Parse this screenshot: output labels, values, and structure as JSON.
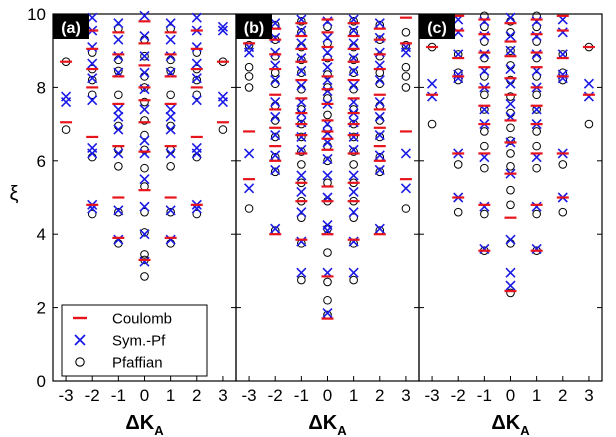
{
  "chart_data": {
    "type": "scatter",
    "ylabel": "ξ",
    "xlabel_main": "ΔK",
    "xlabel_sub": "A",
    "ylim": [
      0,
      10
    ],
    "yticks": [
      0,
      2,
      4,
      6,
      8,
      10
    ],
    "xticks": [
      -3,
      -2,
      -1,
      0,
      1,
      2,
      3
    ],
    "xlim": [
      -3.5,
      3.5
    ],
    "grid": false,
    "legend": {
      "panel": "a",
      "placement": "bottom-left",
      "entries": [
        {
          "label": "Coulomb",
          "marker": "dash",
          "color": "#e8141c"
        },
        {
          "label": "Sym.-Pf",
          "marker": "cross",
          "color": "#1a1ae6"
        },
        {
          "label": "Pfaffian",
          "marker": "circle",
          "color": "#000000"
        }
      ]
    },
    "panels": [
      {
        "label": "(a)",
        "coulomb": {
          "-3": [
            7.05,
            8.7
          ],
          "-2": [
            4.8,
            6.65,
            8.0,
            8.5,
            9.05,
            9.55
          ],
          "-1": [
            3.9,
            5.0,
            6.4,
            7.55,
            8.3,
            8.9,
            9.5
          ],
          "0": [
            3.3,
            5.2,
            6.25,
            7.05,
            7.65,
            8.0,
            8.6,
            9.2,
            9.8
          ],
          "1": [
            3.9,
            5.0,
            6.4,
            7.55,
            8.3,
            8.9,
            9.5
          ],
          "2": [
            4.8,
            6.65,
            8.0,
            8.5,
            9.05,
            9.55
          ],
          "3": [
            7.05,
            8.7
          ]
        },
        "sympf": {
          "-3": [
            7.6,
            7.75,
            9.55,
            9.65
          ],
          "-2": [
            4.7,
            4.8,
            6.2,
            6.35,
            7.65,
            8.25,
            8.65,
            9.1,
            9.55,
            9.9
          ],
          "-1": [
            3.85,
            4.65,
            6.2,
            6.85,
            7.2,
            7.4,
            8.4,
            8.85,
            9.3,
            9.75
          ],
          "0": [
            3.25,
            4.0,
            4.75,
            5.5,
            6.2,
            6.55,
            7.4,
            7.95,
            8.4,
            8.85,
            9.4,
            9.95
          ],
          "1": [
            3.85,
            4.65,
            6.2,
            6.85,
            7.2,
            7.4,
            8.4,
            8.85,
            9.3,
            9.75
          ],
          "2": [
            4.7,
            4.8,
            6.2,
            6.35,
            7.65,
            8.25,
            8.65,
            9.1,
            9.55,
            9.9
          ],
          "3": [
            7.6,
            7.75,
            9.55,
            9.65
          ]
        },
        "pfaffian": {
          "-3": [
            6.85,
            8.7
          ],
          "-2": [
            4.55,
            6.1,
            7.8,
            8.2,
            8.5,
            8.95
          ],
          "-1": [
            3.75,
            4.6,
            5.85,
            6.3,
            6.95,
            7.8,
            8.45,
            8.75,
            9.6
          ],
          "0": [
            2.85,
            3.3,
            3.45,
            4.05,
            4.6,
            5.3,
            5.8,
            6.3,
            6.7,
            7.1,
            7.6,
            8.0,
            8.3,
            8.85,
            9.3
          ],
          "1": [
            3.75,
            4.6,
            5.85,
            6.3,
            6.95,
            7.8,
            8.45,
            8.75,
            9.6
          ],
          "2": [
            4.55,
            6.1,
            7.8,
            8.2,
            8.5,
            8.95
          ],
          "3": [
            6.85,
            8.7
          ]
        }
      },
      {
        "label": "(b)",
        "coulomb": {
          "-3": [
            5.5,
            6.8,
            9.2,
            9.9
          ],
          "-2": [
            4.0,
            6.0,
            6.4,
            6.9,
            7.4,
            7.8,
            8.5,
            8.9,
            9.3,
            9.6
          ],
          "-1": [
            3.85,
            4.9,
            5.4,
            6.2,
            6.7,
            7.0,
            7.3,
            7.7,
            8.2,
            8.7,
            9.05,
            9.4,
            9.75
          ],
          "0": [
            1.7,
            2.85,
            4.0,
            4.9,
            5.3,
            6.3,
            6.6,
            6.8,
            7.1,
            7.55,
            7.95,
            8.3,
            8.75,
            9.1,
            9.5,
            9.85
          ],
          "1": [
            3.85,
            4.9,
            5.4,
            6.2,
            6.7,
            7.0,
            7.3,
            7.7,
            8.2,
            8.7,
            9.05,
            9.4,
            9.75
          ],
          "2": [
            4.0,
            6.0,
            6.4,
            6.9,
            7.4,
            7.8,
            8.5,
            8.9,
            9.3,
            9.6
          ],
          "3": [
            5.5,
            6.8,
            9.2,
            9.9
          ]
        },
        "sympf": {
          "-3": [
            5.25,
            6.2,
            8.95,
            9.1
          ],
          "-2": [
            4.15,
            5.75,
            6.15,
            6.7,
            7.2,
            7.6,
            8.2,
            8.6,
            8.95,
            9.35,
            9.75
          ],
          "-1": [
            2.95,
            3.8,
            4.6,
            5.15,
            5.6,
            6.3,
            6.65,
            7.05,
            7.3,
            7.6,
            8.05,
            8.45,
            8.8,
            9.2,
            9.55,
            9.85
          ],
          "0": [
            1.85,
            2.95,
            4.1,
            4.25,
            5.0,
            5.6,
            6.05,
            6.5,
            6.75,
            7.0,
            7.55,
            7.9,
            8.2,
            8.55,
            8.95,
            9.35,
            9.8
          ],
          "1": [
            2.95,
            3.8,
            4.6,
            5.15,
            5.6,
            6.3,
            6.65,
            7.05,
            7.3,
            7.6,
            8.05,
            8.45,
            8.8,
            9.2,
            9.55,
            9.85
          ],
          "2": [
            4.15,
            5.75,
            6.15,
            6.7,
            7.2,
            7.6,
            8.2,
            8.6,
            8.95,
            9.35,
            9.75
          ],
          "3": [
            5.25,
            6.2,
            8.95,
            9.1
          ]
        },
        "pfaffian": {
          "-3": [
            4.7,
            8.0,
            8.3,
            8.55,
            9.15,
            9.5
          ],
          "-2": [
            4.1,
            5.7,
            6.1,
            6.65,
            7.1,
            7.5,
            8.1,
            8.4,
            8.85,
            9.3,
            9.7
          ],
          "-1": [
            2.75,
            3.75,
            4.45,
            4.9,
            5.4,
            5.9,
            6.25,
            6.65,
            7.0,
            7.4,
            7.95,
            8.4,
            8.75,
            9.1,
            9.5,
            9.8
          ],
          "0": [
            1.8,
            2.2,
            2.7,
            3.5,
            4.15,
            4.9,
            5.4,
            6.0,
            6.4,
            6.85,
            7.25,
            7.7,
            8.0,
            8.35,
            8.8,
            9.2,
            9.65
          ],
          "1": [
            2.75,
            3.75,
            4.45,
            4.9,
            5.4,
            5.9,
            6.25,
            6.65,
            7.0,
            7.4,
            7.95,
            8.4,
            8.75,
            9.1,
            9.5,
            9.8
          ],
          "2": [
            4.1,
            5.7,
            6.1,
            6.65,
            7.1,
            7.5,
            8.1,
            8.4,
            8.85,
            9.3,
            9.7
          ],
          "3": [
            4.7,
            8.0,
            8.3,
            8.55,
            9.15,
            9.5
          ]
        }
      },
      {
        "label": "(c)",
        "coulomb": {
          "-3": [
            7.8,
            9.1
          ],
          "-2": [
            5.0,
            6.2,
            8.3,
            8.8,
            9.55,
            9.95
          ],
          "-1": [
            3.55,
            4.8,
            6.2,
            7.0,
            7.5,
            8.0,
            8.55,
            8.95,
            9.45,
            9.85
          ],
          "0": [
            2.45,
            4.45,
            5.65,
            6.5,
            7.1,
            7.8,
            8.25,
            8.85,
            9.25,
            9.75
          ],
          "1": [
            3.55,
            4.8,
            6.2,
            7.0,
            7.5,
            8.0,
            8.55,
            8.95,
            9.45,
            9.85
          ],
          "2": [
            5.0,
            6.2,
            8.3,
            8.8,
            9.55,
            9.95
          ],
          "3": [
            7.8,
            9.1
          ]
        },
        "sympf": {
          "-3": [
            7.75,
            8.1
          ],
          "-2": [
            5.0,
            6.2,
            8.25,
            8.35,
            8.9,
            9.5,
            9.85
          ],
          "-1": [
            3.6,
            4.75,
            6.1,
            7.0,
            7.4,
            8.0,
            8.45,
            8.9,
            9.4,
            9.8
          ],
          "0": [
            2.6,
            2.95,
            3.85,
            5.65,
            6.5,
            7.2,
            7.55,
            8.1,
            8.5,
            9.0,
            9.4,
            9.9
          ],
          "1": [
            3.6,
            4.75,
            6.1,
            7.0,
            7.4,
            8.0,
            8.45,
            8.9,
            9.4,
            9.8
          ],
          "2": [
            5.0,
            6.2,
            8.25,
            8.35,
            8.9,
            9.5,
            9.85
          ],
          "3": [
            7.75,
            8.1
          ]
        },
        "pfaffian": {
          "-3": [
            7.0,
            9.1
          ],
          "-2": [
            4.6,
            5.9,
            8.2,
            8.4,
            8.9
          ],
          "-1": [
            3.55,
            4.55,
            5.8,
            6.4,
            6.8,
            7.4,
            7.8,
            8.3,
            8.8,
            9.25,
            9.65,
            9.95
          ],
          "0": [
            2.4,
            3.75,
            4.8,
            5.2,
            5.85,
            6.2,
            6.55,
            6.9,
            7.3,
            7.75,
            8.2,
            8.6,
            9.0,
            9.5,
            9.8
          ],
          "1": [
            3.55,
            4.55,
            5.8,
            6.4,
            6.8,
            7.4,
            7.8,
            8.3,
            8.8,
            9.25,
            9.65,
            9.95
          ],
          "2": [
            4.6,
            5.9,
            8.2,
            8.4,
            8.9
          ],
          "3": [
            7.0,
            9.1
          ]
        }
      }
    ]
  }
}
